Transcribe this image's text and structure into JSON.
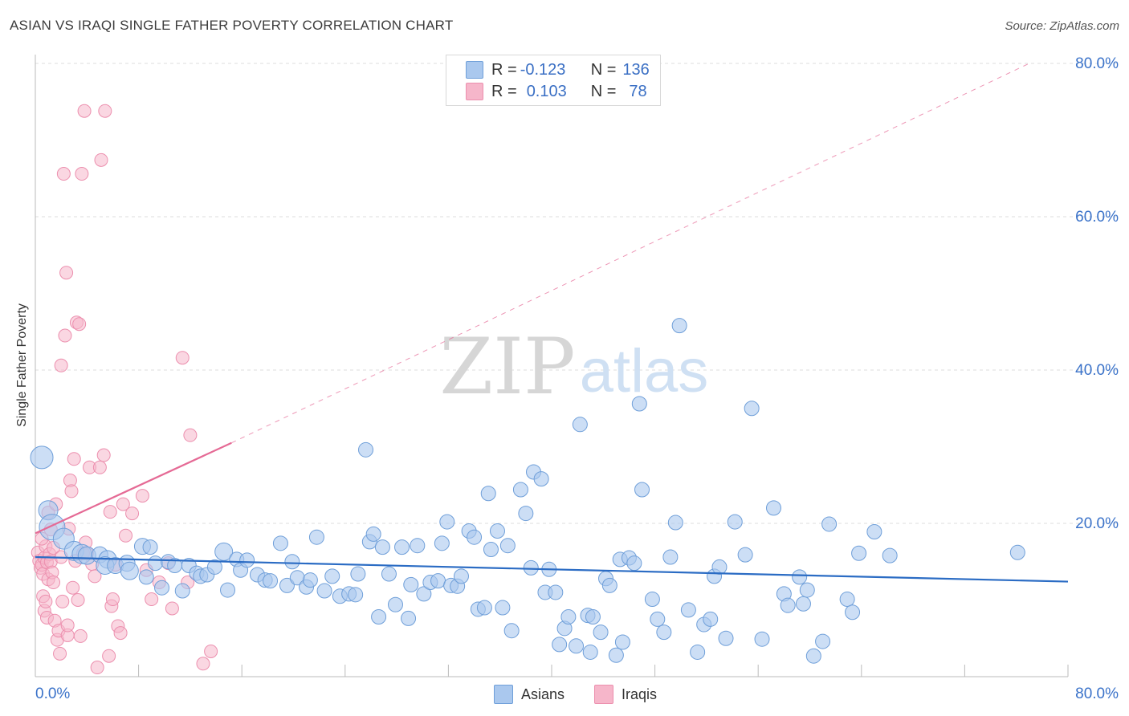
{
  "title": "ASIAN VS IRAQI SINGLE FATHER POVERTY CORRELATION CHART",
  "source": "Source: ZipAtlas.com",
  "watermark": {
    "zip": "ZIP",
    "atlas": "atlas"
  },
  "colors": {
    "asian_fill": "#aac8ee",
    "asian_stroke": "#6f9fd9",
    "asian_line": "#2b6cc4",
    "iraqi_fill": "#f6b6ca",
    "iraqi_stroke": "#ec8fae",
    "iraqi_line": "#e56a95",
    "axis_text": "#3a72c9",
    "grid": "#dcdcdc"
  },
  "legend": {
    "rows": [
      {
        "r_label": "R = ",
        "r_value": "-0.123",
        "n_label": "N = ",
        "n_value": "136"
      },
      {
        "r_label": "R = ",
        "r_value": "0.103",
        "n_label": "N = ",
        "n_value": "78"
      }
    ]
  },
  "bottom_legend": [
    "Asians",
    "Iraqis"
  ],
  "chart_data": {
    "type": "scatter",
    "title": "ASIAN VS IRAQI SINGLE FATHER POVERTY CORRELATION CHART",
    "xlabel": "",
    "ylabel": "Single Father Poverty",
    "xlim": [
      0,
      80
    ],
    "ylim": [
      0,
      80
    ],
    "x_tick_labels": [
      "0.0%",
      "80.0%"
    ],
    "y_tick_labels": [
      "80.0%",
      "60.0%",
      "40.0%",
      "20.0%"
    ],
    "y_ticks": [
      80,
      60,
      40,
      20
    ],
    "grid": true,
    "series": [
      {
        "name": "Asians",
        "r": -0.123,
        "n": 136,
        "trend": {
          "x": [
            0,
            80
          ],
          "y": [
            15.6,
            12.4
          ],
          "dashed_extension": false
        },
        "points": [
          [
            0.5,
            28.6,
            14
          ],
          [
            1.0,
            21.7,
            12
          ],
          [
            1.3,
            19.5,
            16
          ],
          [
            2.2,
            18.0,
            13
          ],
          [
            3.0,
            16.4,
            12
          ],
          [
            3.6,
            16.0,
            12
          ],
          [
            4.0,
            15.8,
            11
          ],
          [
            5.0,
            15.9,
            10
          ],
          [
            5.6,
            15.3,
            11
          ],
          [
            5.4,
            14.5,
            11
          ],
          [
            6.2,
            14.5,
            10
          ],
          [
            7.1,
            14.8,
            10
          ],
          [
            7.3,
            13.8,
            11
          ],
          [
            8.3,
            17.0,
            10
          ],
          [
            8.6,
            13.0,
            9
          ],
          [
            8.9,
            16.9,
            9
          ],
          [
            9.3,
            14.8,
            9
          ],
          [
            9.8,
            11.6,
            9
          ],
          [
            10.3,
            15.0,
            9
          ],
          [
            10.8,
            14.5,
            9
          ],
          [
            11.4,
            11.2,
            9
          ],
          [
            11.9,
            14.5,
            9
          ],
          [
            12.5,
            13.5,
            9
          ],
          [
            12.8,
            13.1,
            9
          ],
          [
            13.3,
            13.3,
            9
          ],
          [
            13.9,
            14.3,
            9
          ],
          [
            14.6,
            16.3,
            11
          ],
          [
            14.9,
            11.3,
            9
          ],
          [
            15.6,
            15.3,
            9
          ],
          [
            15.9,
            13.9,
            9
          ],
          [
            16.4,
            15.2,
            9
          ],
          [
            17.2,
            13.3,
            9
          ],
          [
            17.8,
            12.6,
            9
          ],
          [
            18.2,
            12.5,
            9
          ],
          [
            19.0,
            17.4,
            9
          ],
          [
            19.5,
            11.9,
            9
          ],
          [
            19.9,
            15.0,
            9
          ],
          [
            20.3,
            12.9,
            9
          ],
          [
            21.0,
            11.7,
            9
          ],
          [
            21.3,
            12.6,
            9
          ],
          [
            21.8,
            18.2,
            9
          ],
          [
            22.4,
            11.2,
            9
          ],
          [
            23.0,
            13.1,
            9
          ],
          [
            23.6,
            10.5,
            9
          ],
          [
            24.3,
            10.8,
            9
          ],
          [
            24.8,
            10.7,
            9
          ],
          [
            25.0,
            13.4,
            9
          ],
          [
            25.6,
            29.6,
            9
          ],
          [
            25.9,
            17.6,
            9
          ],
          [
            26.2,
            18.6,
            9
          ],
          [
            26.6,
            7.8,
            9
          ],
          [
            26.9,
            16.9,
            9
          ],
          [
            27.4,
            13.4,
            9
          ],
          [
            27.9,
            9.4,
            9
          ],
          [
            28.4,
            16.9,
            9
          ],
          [
            28.9,
            7.6,
            9
          ],
          [
            29.1,
            12.0,
            9
          ],
          [
            29.6,
            17.1,
            9
          ],
          [
            30.1,
            10.8,
            9
          ],
          [
            30.6,
            12.3,
            9
          ],
          [
            31.2,
            12.5,
            9
          ],
          [
            31.5,
            17.4,
            9
          ],
          [
            31.9,
            20.2,
            9
          ],
          [
            32.2,
            11.9,
            9
          ],
          [
            32.7,
            11.8,
            9
          ],
          [
            33.0,
            13.1,
            9
          ],
          [
            33.6,
            19.0,
            9
          ],
          [
            34.0,
            18.2,
            9
          ],
          [
            34.3,
            8.8,
            9
          ],
          [
            34.8,
            9.0,
            9
          ],
          [
            35.1,
            23.9,
            9
          ],
          [
            35.3,
            16.6,
            9
          ],
          [
            35.8,
            19.0,
            9
          ],
          [
            36.2,
            9.0,
            9
          ],
          [
            36.6,
            17.1,
            9
          ],
          [
            36.9,
            6.0,
            9
          ],
          [
            37.6,
            24.4,
            9
          ],
          [
            38.0,
            21.3,
            9
          ],
          [
            38.4,
            14.2,
            9
          ],
          [
            38.6,
            26.7,
            9
          ],
          [
            39.2,
            25.8,
            9
          ],
          [
            39.5,
            11.0,
            9
          ],
          [
            39.8,
            14.0,
            9
          ],
          [
            40.3,
            11.0,
            9
          ],
          [
            40.6,
            4.2,
            9
          ],
          [
            41.0,
            6.3,
            9
          ],
          [
            41.3,
            7.8,
            9
          ],
          [
            41.9,
            4.0,
            9
          ],
          [
            42.2,
            32.9,
            9
          ],
          [
            42.8,
            8.0,
            9
          ],
          [
            43.0,
            3.2,
            9
          ],
          [
            43.2,
            7.8,
            9
          ],
          [
            43.8,
            5.8,
            9
          ],
          [
            44.2,
            12.8,
            9
          ],
          [
            44.5,
            11.9,
            9
          ],
          [
            45.0,
            2.8,
            9
          ],
          [
            45.3,
            15.3,
            9
          ],
          [
            45.5,
            4.5,
            9
          ],
          [
            46.0,
            15.5,
            9
          ],
          [
            46.4,
            14.8,
            9
          ],
          [
            46.8,
            35.6,
            9
          ],
          [
            47.0,
            24.4,
            9
          ],
          [
            47.8,
            10.1,
            9
          ],
          [
            48.2,
            7.5,
            9
          ],
          [
            48.7,
            5.8,
            9
          ],
          [
            49.2,
            15.6,
            9
          ],
          [
            49.6,
            20.1,
            9
          ],
          [
            49.9,
            45.8,
            9
          ],
          [
            50.6,
            8.7,
            9
          ],
          [
            51.3,
            3.2,
            9
          ],
          [
            51.8,
            6.8,
            9
          ],
          [
            52.3,
            7.5,
            9
          ],
          [
            52.6,
            13.1,
            9
          ],
          [
            53.0,
            14.3,
            9
          ],
          [
            53.5,
            5.0,
            9
          ],
          [
            54.2,
            20.2,
            9
          ],
          [
            55.0,
            15.9,
            9
          ],
          [
            55.5,
            35.0,
            9
          ],
          [
            56.3,
            4.9,
            9
          ],
          [
            57.2,
            22.0,
            9
          ],
          [
            58.0,
            10.8,
            9
          ],
          [
            58.3,
            9.3,
            9
          ],
          [
            59.2,
            13.0,
            9
          ],
          [
            59.5,
            9.5,
            9
          ],
          [
            59.8,
            11.3,
            9
          ],
          [
            60.3,
            2.7,
            9
          ],
          [
            61.0,
            4.6,
            9
          ],
          [
            61.5,
            19.9,
            9
          ],
          [
            62.9,
            10.1,
            9
          ],
          [
            63.3,
            8.4,
            9
          ],
          [
            63.8,
            16.1,
            9
          ],
          [
            65.0,
            18.9,
            9
          ],
          [
            66.2,
            15.8,
            9
          ],
          [
            76.1,
            16.2,
            9
          ]
        ]
      },
      {
        "name": "Iraqis",
        "r": 0.103,
        "n": 78,
        "trend": {
          "x": [
            0,
            15.2
          ],
          "y": [
            18.7,
            30.5
          ],
          "dashed_extension": true,
          "extension_to": [
            77.0,
            80.0
          ]
        },
        "points": [
          [
            0.2,
            16.2,
            8
          ],
          [
            0.3,
            15.1,
            8
          ],
          [
            0.4,
            14.2,
            8
          ],
          [
            0.5,
            14.6,
            8
          ],
          [
            0.6,
            13.4,
            8
          ],
          [
            0.7,
            15.5,
            8
          ],
          [
            0.8,
            17.0,
            8
          ],
          [
            0.9,
            14.9,
            8
          ],
          [
            1.0,
            12.7,
            8
          ],
          [
            1.1,
            16.0,
            8
          ],
          [
            1.2,
            15.0,
            8
          ],
          [
            1.3,
            13.6,
            8
          ],
          [
            0.5,
            18.0,
            8
          ],
          [
            0.6,
            10.5,
            8
          ],
          [
            0.7,
            8.6,
            8
          ],
          [
            0.8,
            9.8,
            8
          ],
          [
            0.9,
            7.7,
            8
          ],
          [
            1.0,
            21.4,
            8
          ],
          [
            1.2,
            19.2,
            8
          ],
          [
            1.4,
            12.3,
            8
          ],
          [
            1.4,
            16.8,
            8
          ],
          [
            1.5,
            7.3,
            8
          ],
          [
            1.6,
            22.5,
            8
          ],
          [
            1.7,
            4.8,
            8
          ],
          [
            1.8,
            6.0,
            8
          ],
          [
            1.9,
            3.0,
            8
          ],
          [
            2.0,
            40.6,
            8
          ],
          [
            2.0,
            15.6,
            8
          ],
          [
            2.1,
            9.8,
            8
          ],
          [
            2.2,
            65.6,
            8
          ],
          [
            2.3,
            44.5,
            8
          ],
          [
            2.4,
            52.7,
            8
          ],
          [
            2.5,
            5.4,
            8
          ],
          [
            2.5,
            6.7,
            8
          ],
          [
            2.6,
            19.3,
            8
          ],
          [
            2.7,
            25.6,
            8
          ],
          [
            2.8,
            24.2,
            8
          ],
          [
            2.9,
            11.6,
            8
          ],
          [
            3.0,
            28.4,
            8
          ],
          [
            3.1,
            15.1,
            8
          ],
          [
            3.2,
            46.2,
            8
          ],
          [
            3.3,
            10.0,
            8
          ],
          [
            3.4,
            46.0,
            8
          ],
          [
            3.5,
            5.3,
            8
          ],
          [
            3.6,
            65.6,
            8
          ],
          [
            3.7,
            16.1,
            8
          ],
          [
            3.8,
            73.8,
            8
          ],
          [
            3.9,
            17.5,
            8
          ],
          [
            4.0,
            16.1,
            8
          ],
          [
            4.2,
            27.3,
            8
          ],
          [
            4.4,
            14.7,
            8
          ],
          [
            4.6,
            13.1,
            8
          ],
          [
            4.8,
            1.2,
            8
          ],
          [
            5.0,
            27.3,
            8
          ],
          [
            5.1,
            67.4,
            8
          ],
          [
            5.3,
            28.9,
            8
          ],
          [
            5.4,
            73.8,
            8
          ],
          [
            5.7,
            2.7,
            8
          ],
          [
            5.8,
            21.5,
            8
          ],
          [
            5.9,
            9.2,
            8
          ],
          [
            6.0,
            10.1,
            8
          ],
          [
            6.2,
            14.6,
            8
          ],
          [
            6.4,
            6.6,
            8
          ],
          [
            6.6,
            5.7,
            8
          ],
          [
            6.8,
            22.5,
            8
          ],
          [
            7.0,
            18.4,
            8
          ],
          [
            7.5,
            21.3,
            8
          ],
          [
            8.3,
            23.6,
            8
          ],
          [
            8.6,
            13.9,
            8
          ],
          [
            9.0,
            10.1,
            8
          ],
          [
            9.6,
            12.3,
            8
          ],
          [
            10.3,
            14.8,
            8
          ],
          [
            10.6,
            8.9,
            8
          ],
          [
            11.4,
            41.6,
            8
          ],
          [
            12.0,
            31.5,
            8
          ],
          [
            11.8,
            12.3,
            8
          ],
          [
            13.0,
            1.7,
            8
          ],
          [
            13.6,
            3.3,
            8
          ]
        ]
      }
    ]
  }
}
